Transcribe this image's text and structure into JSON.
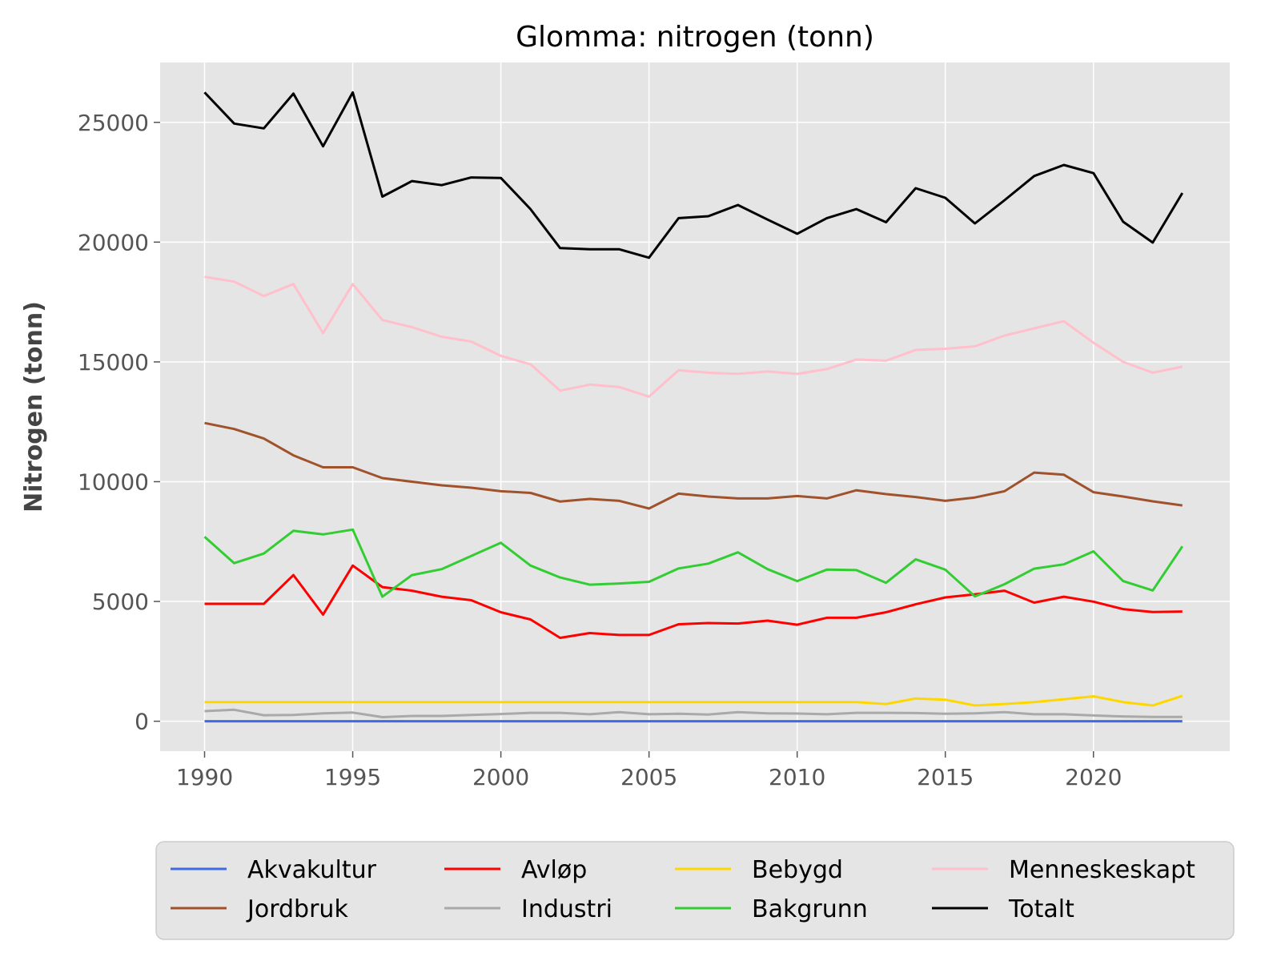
{
  "chart_data": {
    "type": "line",
    "title": "Glomma: nitrogen (tonn)",
    "xlabel": "",
    "ylabel": "Nitrogen (tonn)",
    "xlim": [
      1988.5,
      2024.6
    ],
    "ylim": [
      -1250,
      27500
    ],
    "xticks": [
      1990,
      1995,
      2000,
      2005,
      2010,
      2015,
      2020
    ],
    "yticks": [
      0,
      5000,
      10000,
      15000,
      20000,
      25000
    ],
    "grid": true,
    "legend_position": "bottom",
    "x": [
      1990,
      1991,
      1992,
      1993,
      1994,
      1995,
      1996,
      1997,
      1998,
      1999,
      2000,
      2001,
      2002,
      2003,
      2004,
      2005,
      2006,
      2007,
      2008,
      2009,
      2010,
      2011,
      2012,
      2013,
      2014,
      2015,
      2016,
      2017,
      2018,
      2019,
      2020,
      2021,
      2022,
      2023
    ],
    "series": [
      {
        "name": "Akvakultur",
        "color": "#4169e1",
        "values": [
          0,
          0,
          0,
          0,
          0,
          0,
          0,
          0,
          0,
          0,
          0,
          0,
          0,
          0,
          0,
          0,
          0,
          0,
          0,
          0,
          0,
          0,
          0,
          0,
          0,
          0,
          0,
          0,
          0,
          0,
          0,
          0,
          0,
          0
        ]
      },
      {
        "name": "Avløp",
        "color": "#ff0000",
        "values": [
          4900,
          4900,
          4900,
          6100,
          4450,
          6500,
          5600,
          5450,
          5200,
          5050,
          4550,
          4250,
          3480,
          3680,
          3600,
          3600,
          4050,
          4100,
          4080,
          4200,
          4030,
          4320,
          4320,
          4550,
          4880,
          5170,
          5300,
          5450,
          4950,
          5200,
          4990,
          4680,
          4560,
          4580
        ]
      },
      {
        "name": "Bebygd",
        "color": "#ffd700",
        "values": [
          800,
          800,
          800,
          800,
          800,
          800,
          800,
          800,
          800,
          800,
          800,
          800,
          800,
          800,
          800,
          800,
          800,
          800,
          800,
          800,
          800,
          800,
          800,
          720,
          950,
          900,
          660,
          720,
          800,
          920,
          1040,
          800,
          660,
          1060
        ]
      },
      {
        "name": "Menneskeskapt",
        "color": "#ffc0cb",
        "values": [
          18550,
          18350,
          17750,
          18250,
          16200,
          18250,
          16750,
          16450,
          16050,
          15850,
          15250,
          14900,
          13800,
          14050,
          13950,
          13550,
          14650,
          14550,
          14500,
          14600,
          14500,
          14700,
          15100,
          15050,
          15500,
          15550,
          15650,
          16100,
          16400,
          16700,
          15800,
          15000,
          14550,
          14800
        ]
      },
      {
        "name": "Jordbruk",
        "color": "#a0522d",
        "values": [
          12450,
          12200,
          11800,
          11100,
          10600,
          10600,
          10150,
          10000,
          9850,
          9750,
          9600,
          9530,
          9170,
          9280,
          9200,
          8880,
          9500,
          9380,
          9300,
          9300,
          9400,
          9300,
          9640,
          9480,
          9360,
          9200,
          9340,
          9600,
          10380,
          10290,
          9560,
          9380,
          9180,
          9010
        ]
      },
      {
        "name": "Industri",
        "color": "#a9a9a9",
        "values": [
          420,
          480,
          250,
          260,
          330,
          360,
          170,
          220,
          220,
          260,
          300,
          350,
          350,
          290,
          380,
          290,
          310,
          280,
          380,
          330,
          320,
          290,
          350,
          350,
          340,
          310,
          330,
          380,
          290,
          290,
          240,
          200,
          180,
          180
        ]
      },
      {
        "name": "Bakgrunn",
        "color": "#32cd32",
        "values": [
          7700,
          6600,
          7000,
          7950,
          7800,
          8000,
          5200,
          6100,
          6350,
          6900,
          7450,
          6500,
          6000,
          5700,
          5750,
          5820,
          6380,
          6580,
          7050,
          6350,
          5850,
          6330,
          6310,
          5780,
          6760,
          6330,
          5210,
          5720,
          6370,
          6550,
          7090,
          5850,
          5460,
          7300
        ]
      },
      {
        "name": "Totalt",
        "color": "#000000",
        "values": [
          26250,
          24950,
          24750,
          26200,
          24000,
          26250,
          21900,
          22550,
          22380,
          22700,
          22680,
          21380,
          19750,
          19700,
          19700,
          19350,
          21000,
          21080,
          21550,
          20940,
          20350,
          21000,
          21380,
          20830,
          22250,
          21850,
          20780,
          21750,
          22760,
          23220,
          22880,
          20850,
          19980,
          22050
        ]
      }
    ],
    "legend_order": [
      "Akvakultur",
      "Avløp",
      "Bebygd",
      "Menneskeskapt",
      "Jordbruk",
      "Industri",
      "Bakgrunn",
      "Totalt"
    ]
  }
}
